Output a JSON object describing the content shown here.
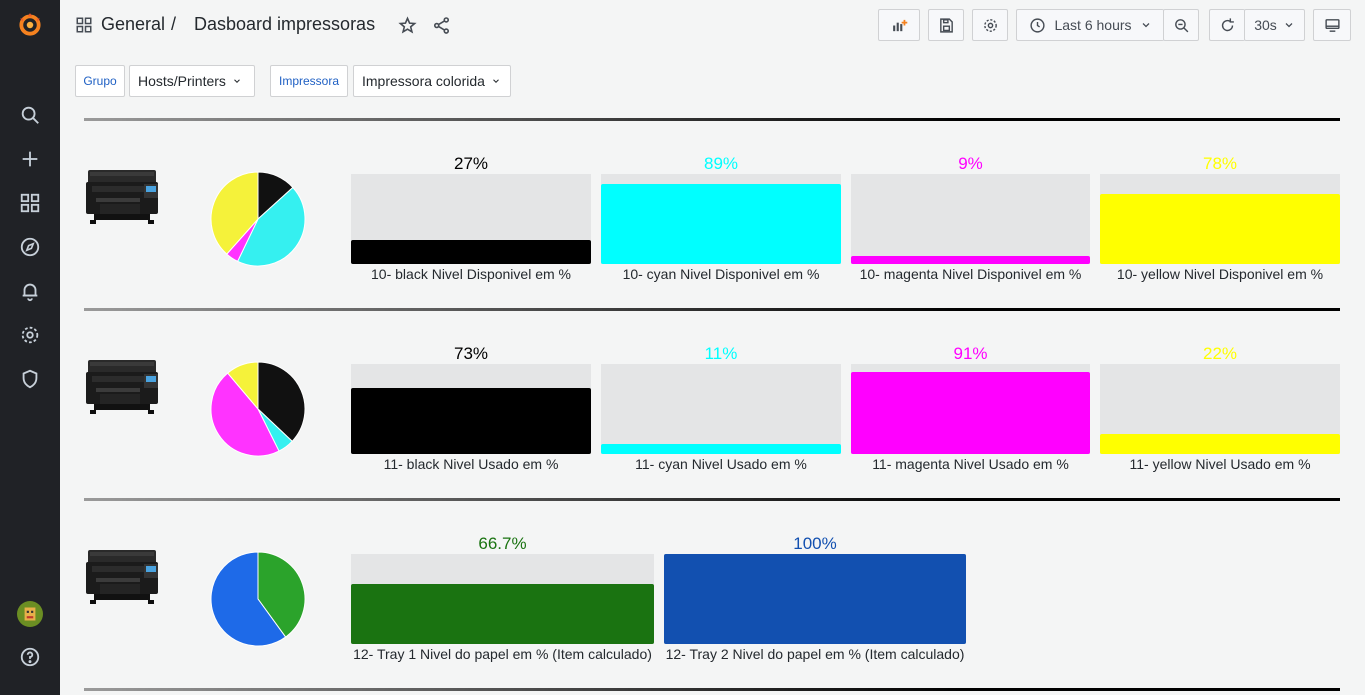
{
  "breadcrumb": {
    "folder": "General",
    "separator": "/",
    "title": "Dasboard impressoras"
  },
  "toolbar": {
    "time_range": "Last 6 hours",
    "refresh_interval": "30s"
  },
  "variables": [
    {
      "label": "Grupo",
      "value": "Hosts/Printers"
    },
    {
      "label": "Impressora",
      "value": "Impressora colorida"
    }
  ],
  "rows": [
    {
      "pie": [
        {
          "value": 27,
          "color": "#111111"
        },
        {
          "value": 89,
          "color": "#35f0f0"
        },
        {
          "value": 9,
          "color": "#ff33ff"
        },
        {
          "value": 78,
          "color": "#f5f23a"
        }
      ],
      "gauges": [
        {
          "value_text": "27%",
          "fraction": 0.27,
          "color": "#000000",
          "text_color": "#000000",
          "label": "10- black Nivel Disponivel em %"
        },
        {
          "value_text": "89%",
          "fraction": 0.89,
          "color": "#00ffff",
          "text_color": "#00ffff",
          "label": "10- cyan Nivel Disponivel em %"
        },
        {
          "value_text": "9%",
          "fraction": 0.09,
          "color": "#ff00ff",
          "text_color": "#ff00ff",
          "label": "10- magenta Nivel Disponivel em %"
        },
        {
          "value_text": "78%",
          "fraction": 0.78,
          "color": "#ffff00",
          "text_color": "#ffff00",
          "label": "10- yellow Nivel Disponivel em %"
        }
      ]
    },
    {
      "pie": [
        {
          "value": 73,
          "color": "#111111"
        },
        {
          "value": 11,
          "color": "#35f0f0"
        },
        {
          "value": 91,
          "color": "#ff33ff"
        },
        {
          "value": 22,
          "color": "#f5f23a"
        }
      ],
      "gauges": [
        {
          "value_text": "73%",
          "fraction": 0.73,
          "color": "#000000",
          "text_color": "#000000",
          "label": "11- black Nivel Usado em %"
        },
        {
          "value_text": "11%",
          "fraction": 0.11,
          "color": "#00ffff",
          "text_color": "#00ffff",
          "label": "11- cyan Nivel Usado em %"
        },
        {
          "value_text": "91%",
          "fraction": 0.91,
          "color": "#ff00ff",
          "text_color": "#ff00ff",
          "label": "11- magenta Nivel Usado em %"
        },
        {
          "value_text": "22%",
          "fraction": 0.22,
          "color": "#ffff00",
          "text_color": "#ffff00",
          "label": "11- yellow Nivel Usado em %"
        }
      ]
    },
    {
      "pie": [
        {
          "value": 66.7,
          "color": "#2ba32b"
        },
        {
          "value": 100,
          "color": "#1e6ae8"
        }
      ],
      "gauges": [
        {
          "value_text": "66.7%",
          "fraction": 0.667,
          "color": "#1a7311",
          "text_color": "#1a7311",
          "label": "12- Tray 1 Nivel do papel em % (Item calculado)"
        },
        {
          "value_text": "100%",
          "fraction": 1.0,
          "color": "#1250b0",
          "text_color": "#1250b0",
          "label": "12- Tray 2 Nivel do papel em % (Item calculado)"
        }
      ]
    }
  ],
  "icons": {
    "sidebar": [
      "grafana-logo-icon",
      "search-icon",
      "plus-icon",
      "dashboards-icon",
      "explore-compass-icon",
      "alerting-bell-icon",
      "configuration-gear-icon",
      "server-admin-shield-icon",
      "user-avatar",
      "help-icon"
    ],
    "toolbar": [
      "add-panel-icon",
      "save-icon",
      "settings-gear-icon",
      "clock-icon",
      "zoom-out-icon",
      "refresh-icon",
      "tv-mode-icon"
    ]
  }
}
